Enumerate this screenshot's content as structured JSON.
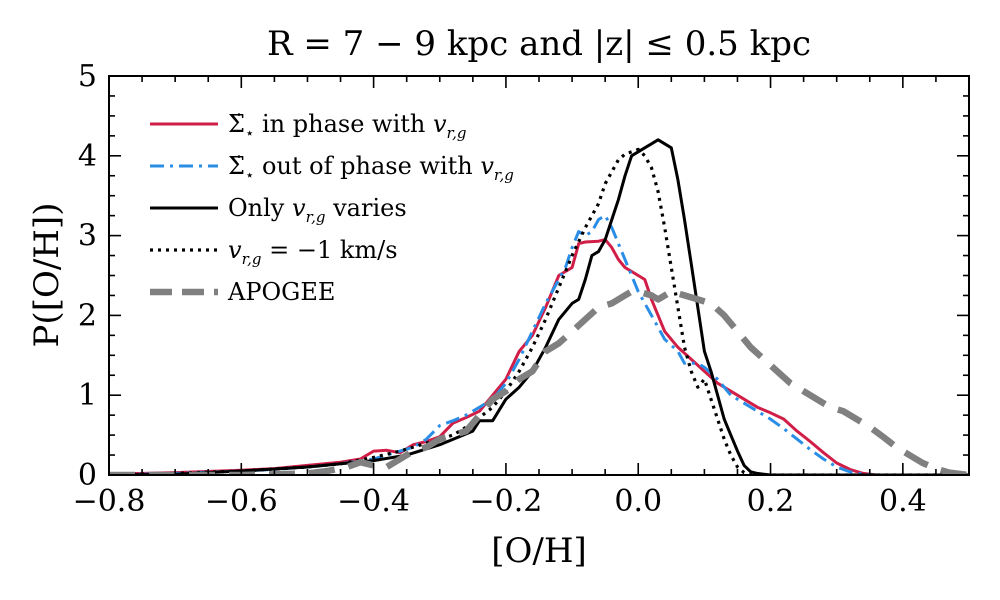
{
  "chart_data": {
    "type": "line",
    "title": "R = 7 − 9 kpc and |z| ≤ 0.5 kpc",
    "xlabel": "[O/H]",
    "ylabel": "P([O/H])",
    "xlim": [
      -0.8,
      0.5
    ],
    "ylim": [
      0,
      5
    ],
    "x_ticks": [
      -0.8,
      -0.6,
      -0.4,
      -0.2,
      0.0,
      0.2,
      0.4
    ],
    "x_tick_labels": [
      "−0.8",
      "−0.6",
      "−0.4",
      "−0.2",
      "0.0",
      "0.2",
      "0.4"
    ],
    "y_ticks": [
      0,
      1,
      2,
      3,
      4,
      5
    ],
    "y_tick_labels": [
      "0",
      "1",
      "2",
      "3",
      "4",
      "5"
    ],
    "legend_position": "top-left",
    "grid": false,
    "series": [
      {
        "name": "Σ̇⋆ in phase with v_r,g",
        "legend_main": "Σ̇",
        "legend_sub": "⋆",
        "legend_text": " in phase with ",
        "legend_var": "v",
        "legend_var_sub": "r,g",
        "color": "#d11e47",
        "dash": "solid",
        "width": 3,
        "points": [
          [
            -0.8,
            0.01
          ],
          [
            -0.7,
            0.03
          ],
          [
            -0.6,
            0.06
          ],
          [
            -0.55,
            0.08
          ],
          [
            -0.5,
            0.12
          ],
          [
            -0.45,
            0.16
          ],
          [
            -0.42,
            0.2
          ],
          [
            -0.4,
            0.3
          ],
          [
            -0.38,
            0.31
          ],
          [
            -0.36,
            0.28
          ],
          [
            -0.34,
            0.38
          ],
          [
            -0.32,
            0.42
          ],
          [
            -0.3,
            0.48
          ],
          [
            -0.28,
            0.65
          ],
          [
            -0.26,
            0.72
          ],
          [
            -0.24,
            0.8
          ],
          [
            -0.22,
            1.0
          ],
          [
            -0.2,
            1.2
          ],
          [
            -0.18,
            1.55
          ],
          [
            -0.16,
            1.75
          ],
          [
            -0.14,
            2.1
          ],
          [
            -0.12,
            2.5
          ],
          [
            -0.1,
            2.6
          ],
          [
            -0.09,
            2.9
          ],
          [
            -0.08,
            2.92
          ],
          [
            -0.06,
            2.93
          ],
          [
            -0.05,
            2.95
          ],
          [
            -0.04,
            2.85
          ],
          [
            -0.03,
            2.7
          ],
          [
            -0.02,
            2.6
          ],
          [
            -0.01,
            2.55
          ],
          [
            0.0,
            2.5
          ],
          [
            0.01,
            2.45
          ],
          [
            0.02,
            2.2
          ],
          [
            0.03,
            2.0
          ],
          [
            0.04,
            1.8
          ],
          [
            0.06,
            1.6
          ],
          [
            0.08,
            1.45
          ],
          [
            0.1,
            1.3
          ],
          [
            0.12,
            1.15
          ],
          [
            0.14,
            1.05
          ],
          [
            0.16,
            0.95
          ],
          [
            0.18,
            0.85
          ],
          [
            0.2,
            0.78
          ],
          [
            0.22,
            0.7
          ],
          [
            0.24,
            0.55
          ],
          [
            0.26,
            0.42
          ],
          [
            0.28,
            0.28
          ],
          [
            0.3,
            0.15
          ],
          [
            0.32,
            0.07
          ],
          [
            0.34,
            0.02
          ],
          [
            0.36,
            0.0
          ],
          [
            0.5,
            0.0
          ]
        ]
      },
      {
        "name": "Σ̇⋆ out of phase with v_r,g",
        "legend_main": "Σ̇",
        "legend_sub": "⋆",
        "legend_text": " out of phase with ",
        "legend_var": "v",
        "legend_var_sub": "r,g",
        "color": "#2b8ee6",
        "dash": "dashdot",
        "width": 3,
        "points": [
          [
            -0.8,
            0.0
          ],
          [
            -0.7,
            0.02
          ],
          [
            -0.6,
            0.05
          ],
          [
            -0.55,
            0.07
          ],
          [
            -0.5,
            0.1
          ],
          [
            -0.45,
            0.14
          ],
          [
            -0.4,
            0.2
          ],
          [
            -0.38,
            0.25
          ],
          [
            -0.36,
            0.3
          ],
          [
            -0.34,
            0.35
          ],
          [
            -0.32,
            0.45
          ],
          [
            -0.3,
            0.62
          ],
          [
            -0.28,
            0.68
          ],
          [
            -0.26,
            0.75
          ],
          [
            -0.24,
            0.85
          ],
          [
            -0.22,
            0.95
          ],
          [
            -0.2,
            1.15
          ],
          [
            -0.18,
            1.45
          ],
          [
            -0.16,
            1.8
          ],
          [
            -0.14,
            2.15
          ],
          [
            -0.12,
            2.45
          ],
          [
            -0.11,
            2.6
          ],
          [
            -0.1,
            2.85
          ],
          [
            -0.09,
            3.05
          ],
          [
            -0.08,
            3.0
          ],
          [
            -0.07,
            3.05
          ],
          [
            -0.06,
            3.2
          ],
          [
            -0.05,
            3.25
          ],
          [
            -0.04,
            3.1
          ],
          [
            -0.03,
            2.9
          ],
          [
            -0.02,
            2.7
          ],
          [
            -0.01,
            2.5
          ],
          [
            0.0,
            2.3
          ],
          [
            0.02,
            2.0
          ],
          [
            0.04,
            1.7
          ],
          [
            0.06,
            1.55
          ],
          [
            0.07,
            1.4
          ],
          [
            0.09,
            1.4
          ],
          [
            0.1,
            1.35
          ],
          [
            0.12,
            1.2
          ],
          [
            0.14,
            1.0
          ],
          [
            0.16,
            0.9
          ],
          [
            0.18,
            0.8
          ],
          [
            0.2,
            0.7
          ],
          [
            0.22,
            0.58
          ],
          [
            0.24,
            0.45
          ],
          [
            0.26,
            0.32
          ],
          [
            0.28,
            0.2
          ],
          [
            0.3,
            0.1
          ],
          [
            0.32,
            0.04
          ],
          [
            0.34,
            0.01
          ],
          [
            0.36,
            0.0
          ],
          [
            0.5,
            0.0
          ]
        ]
      },
      {
        "name": "Only v_r,g varies",
        "legend_main": "",
        "legend_sub": "",
        "legend_text": "Only ",
        "legend_var": "v",
        "legend_var_sub": "r,g",
        "legend_tail": " varies",
        "color": "#000000",
        "dash": "solid",
        "width": 3,
        "points": [
          [
            -0.8,
            0.0
          ],
          [
            -0.7,
            0.01
          ],
          [
            -0.6,
            0.05
          ],
          [
            -0.5,
            0.1
          ],
          [
            -0.45,
            0.14
          ],
          [
            -0.4,
            0.18
          ],
          [
            -0.35,
            0.25
          ],
          [
            -0.3,
            0.38
          ],
          [
            -0.25,
            0.55
          ],
          [
            -0.24,
            0.68
          ],
          [
            -0.22,
            0.68
          ],
          [
            -0.2,
            0.95
          ],
          [
            -0.18,
            1.1
          ],
          [
            -0.16,
            1.3
          ],
          [
            -0.14,
            1.6
          ],
          [
            -0.12,
            1.95
          ],
          [
            -0.1,
            2.15
          ],
          [
            -0.09,
            2.2
          ],
          [
            -0.08,
            2.45
          ],
          [
            -0.07,
            2.75
          ],
          [
            -0.06,
            2.8
          ],
          [
            -0.05,
            2.95
          ],
          [
            -0.04,
            3.2
          ],
          [
            -0.03,
            3.45
          ],
          [
            -0.02,
            3.75
          ],
          [
            -0.01,
            4.0
          ],
          [
            0.0,
            4.05
          ],
          [
            0.01,
            4.1
          ],
          [
            0.02,
            4.15
          ],
          [
            0.03,
            4.2
          ],
          [
            0.04,
            4.15
          ],
          [
            0.05,
            4.1
          ],
          [
            0.06,
            3.7
          ],
          [
            0.07,
            3.2
          ],
          [
            0.08,
            2.65
          ],
          [
            0.09,
            2.1
          ],
          [
            0.1,
            1.55
          ],
          [
            0.11,
            1.3
          ],
          [
            0.12,
            1.0
          ],
          [
            0.13,
            0.7
          ],
          [
            0.14,
            0.5
          ],
          [
            0.15,
            0.3
          ],
          [
            0.16,
            0.12
          ],
          [
            0.17,
            0.04
          ],
          [
            0.18,
            0.02
          ],
          [
            0.2,
            0.0
          ],
          [
            0.5,
            0.0
          ]
        ]
      },
      {
        "name": "v_r,g = −1 km/s",
        "legend_main": "",
        "legend_sub": "",
        "legend_text": "",
        "legend_var": "v",
        "legend_var_sub": "r,g",
        "legend_tail": " = −1 km/s",
        "color": "#000000",
        "dash": "dotted",
        "width": 3.2,
        "points": [
          [
            -0.8,
            0.0
          ],
          [
            -0.7,
            0.02
          ],
          [
            -0.6,
            0.05
          ],
          [
            -0.5,
            0.1
          ],
          [
            -0.45,
            0.14
          ],
          [
            -0.4,
            0.22
          ],
          [
            -0.36,
            0.3
          ],
          [
            -0.32,
            0.4
          ],
          [
            -0.28,
            0.5
          ],
          [
            -0.26,
            0.6
          ],
          [
            -0.24,
            0.72
          ],
          [
            -0.22,
            0.85
          ],
          [
            -0.2,
            1.05
          ],
          [
            -0.18,
            1.3
          ],
          [
            -0.16,
            1.6
          ],
          [
            -0.14,
            1.95
          ],
          [
            -0.12,
            2.35
          ],
          [
            -0.1,
            2.75
          ],
          [
            -0.08,
            3.1
          ],
          [
            -0.06,
            3.4
          ],
          [
            -0.05,
            3.65
          ],
          [
            -0.04,
            3.8
          ],
          [
            -0.03,
            3.95
          ],
          [
            -0.02,
            4.02
          ],
          [
            -0.01,
            4.05
          ],
          [
            0.0,
            4.08
          ],
          [
            0.01,
            4.0
          ],
          [
            0.02,
            3.85
          ],
          [
            0.03,
            3.55
          ],
          [
            0.04,
            3.1
          ],
          [
            0.05,
            2.6
          ],
          [
            0.06,
            2.1
          ],
          [
            0.07,
            1.6
          ],
          [
            0.08,
            1.3
          ],
          [
            0.09,
            1.1
          ],
          [
            0.1,
            1.2
          ],
          [
            0.11,
            0.95
          ],
          [
            0.12,
            0.7
          ],
          [
            0.13,
            0.45
          ],
          [
            0.14,
            0.25
          ],
          [
            0.15,
            0.1
          ],
          [
            0.16,
            0.03
          ],
          [
            0.17,
            0.0
          ],
          [
            0.5,
            0.0
          ]
        ]
      },
      {
        "name": "APOGEE",
        "legend_main": "",
        "legend_sub": "",
        "legend_text": "APOGEE",
        "legend_var": "",
        "legend_var_sub": "",
        "color": "#808080",
        "dash": "dashed",
        "width": 6.5,
        "points": [
          [
            -0.8,
            0.0
          ],
          [
            -0.6,
            0.0
          ],
          [
            -0.5,
            0.02
          ],
          [
            -0.47,
            0.05
          ],
          [
            -0.44,
            0.1
          ],
          [
            -0.42,
            0.16
          ],
          [
            -0.4,
            0.12
          ],
          [
            -0.38,
            0.1
          ],
          [
            -0.36,
            0.2
          ],
          [
            -0.34,
            0.3
          ],
          [
            -0.32,
            0.35
          ],
          [
            -0.3,
            0.45
          ],
          [
            -0.28,
            0.5
          ],
          [
            -0.26,
            0.55
          ],
          [
            -0.24,
            0.75
          ],
          [
            -0.22,
            0.95
          ],
          [
            -0.2,
            1.05
          ],
          [
            -0.18,
            1.2
          ],
          [
            -0.16,
            1.3
          ],
          [
            -0.14,
            1.55
          ],
          [
            -0.12,
            1.65
          ],
          [
            -0.1,
            1.8
          ],
          [
            -0.08,
            1.95
          ],
          [
            -0.06,
            2.1
          ],
          [
            -0.04,
            2.15
          ],
          [
            -0.02,
            2.25
          ],
          [
            -0.01,
            2.3
          ],
          [
            0.0,
            2.3
          ],
          [
            0.02,
            2.25
          ],
          [
            0.03,
            2.2
          ],
          [
            0.05,
            2.3
          ],
          [
            0.07,
            2.25
          ],
          [
            0.09,
            2.2
          ],
          [
            0.11,
            2.15
          ],
          [
            0.13,
            2.0
          ],
          [
            0.15,
            1.8
          ],
          [
            0.17,
            1.6
          ],
          [
            0.19,
            1.45
          ],
          [
            0.21,
            1.3
          ],
          [
            0.23,
            1.15
          ],
          [
            0.25,
            1.05
          ],
          [
            0.27,
            0.95
          ],
          [
            0.29,
            0.85
          ],
          [
            0.31,
            0.8
          ],
          [
            0.33,
            0.7
          ],
          [
            0.35,
            0.6
          ],
          [
            0.37,
            0.48
          ],
          [
            0.39,
            0.35
          ],
          [
            0.41,
            0.25
          ],
          [
            0.43,
            0.15
          ],
          [
            0.45,
            0.08
          ],
          [
            0.47,
            0.03
          ],
          [
            0.49,
            0.01
          ],
          [
            0.5,
            0.0
          ]
        ]
      }
    ]
  }
}
